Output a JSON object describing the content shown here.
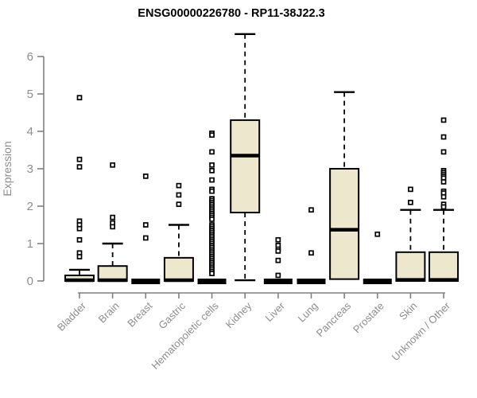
{
  "title": "ENSG00000226780 - RP11-38J22.3",
  "colors": {
    "box_fill": "#EDE7CD",
    "box_stroke": "#000000",
    "axis_line": "#808080",
    "axis_text": "#8D8D8D",
    "title_text": "#000000",
    "flier_fill": "#FFFFFF"
  },
  "chart_data": {
    "type": "boxplot",
    "title": "ENSG00000226780 - RP11-38J22.3",
    "xlabel": "",
    "ylabel": "Expression",
    "ylim": [
      0,
      6.8
    ],
    "yticks": [
      0,
      1,
      2,
      3,
      4,
      5,
      6
    ],
    "grid": false,
    "legend": "none",
    "categories": [
      "Bladder",
      "Brain",
      "Breast",
      "Gastric",
      "Hematopoietic cells",
      "Kidney",
      "Liver",
      "Lung",
      "Pancreas",
      "Prostate",
      "Skin",
      "Unknown / Other"
    ],
    "series": [
      {
        "label": "Bladder",
        "flat": false,
        "whislo": 0,
        "q1": 0,
        "med": 0.02,
        "q3": 0.15,
        "whishi": 0.3,
        "fliers": [
          4.9,
          3.25,
          3.05,
          1.6,
          1.5,
          1.4,
          1.1,
          0.75,
          0.65
        ]
      },
      {
        "label": "Brain",
        "flat": false,
        "whislo": 0,
        "q1": 0,
        "med": 0.02,
        "q3": 0.4,
        "whishi": 1.0,
        "fliers": [
          3.1,
          1.7,
          1.55,
          1.45
        ]
      },
      {
        "label": "Breast",
        "flat": true,
        "whislo": 0,
        "q1": 0,
        "med": 0.02,
        "q3": 0.05,
        "whishi": 0.05,
        "fliers": [
          2.8,
          1.5,
          1.15
        ]
      },
      {
        "label": "Gastric",
        "flat": false,
        "whislo": 0,
        "q1": 0,
        "med": 0.02,
        "q3": 0.62,
        "whishi": 1.5,
        "fliers": [
          2.55,
          2.3,
          2.05
        ]
      },
      {
        "label": "Hematopoietic cells",
        "flat": true,
        "whislo": 0,
        "q1": 0,
        "med": 0.02,
        "q3": 0.05,
        "whishi": 0.05,
        "fliers": [
          3.95,
          3.9,
          3.45,
          3.1,
          2.95,
          2.7,
          2.45,
          2.4,
          2.2,
          2.15,
          2.1,
          2.05,
          2.0,
          1.95,
          1.9,
          1.85,
          1.8,
          1.75,
          1.7,
          1.65,
          1.5,
          1.45,
          1.4,
          1.35,
          1.3,
          1.25,
          1.2,
          1.15,
          1.1,
          1.05,
          1.0,
          0.95,
          0.9,
          0.85,
          0.8,
          0.75,
          0.7,
          0.65,
          0.6,
          0.55,
          0.5,
          0.45,
          0.4,
          0.35,
          0.3,
          0.25,
          0.2
        ]
      },
      {
        "label": "Kidney",
        "flat": false,
        "whislo": 0.02,
        "q1": 1.83,
        "med": 3.35,
        "q3": 4.3,
        "whishi": 6.6,
        "fliers": []
      },
      {
        "label": "Liver",
        "flat": true,
        "whislo": 0,
        "q1": 0,
        "med": 0.02,
        "q3": 0.05,
        "whishi": 0.05,
        "fliers": [
          1.1,
          0.95,
          0.85,
          0.8,
          0.55,
          0.15
        ]
      },
      {
        "label": "Lung",
        "flat": true,
        "whislo": 0,
        "q1": 0,
        "med": 0.02,
        "q3": 0.05,
        "whishi": 0.05,
        "fliers": [
          1.9,
          0.75
        ]
      },
      {
        "label": "Pancreas",
        "flat": false,
        "whislo": 0.05,
        "q1": 0.05,
        "med": 1.37,
        "q3": 3.0,
        "whishi": 5.05,
        "fliers": []
      },
      {
        "label": "Prostate",
        "flat": true,
        "whislo": 0,
        "q1": 0,
        "med": 0.02,
        "q3": 0.05,
        "whishi": 0.05,
        "fliers": [
          1.25
        ]
      },
      {
        "label": "Skin",
        "flat": false,
        "whislo": 0,
        "q1": 0,
        "med": 0.03,
        "q3": 0.77,
        "whishi": 1.9,
        "fliers": [
          2.45,
          2.1
        ]
      },
      {
        "label": "Unknown / Other",
        "flat": false,
        "whislo": 0,
        "q1": 0,
        "med": 0.03,
        "q3": 0.77,
        "whishi": 1.9,
        "fliers": [
          4.3,
          3.85,
          3.45,
          2.95,
          2.9,
          2.85,
          2.8,
          2.75,
          2.65,
          2.4,
          2.35,
          2.25,
          2.05,
          1.98
        ]
      }
    ]
  }
}
